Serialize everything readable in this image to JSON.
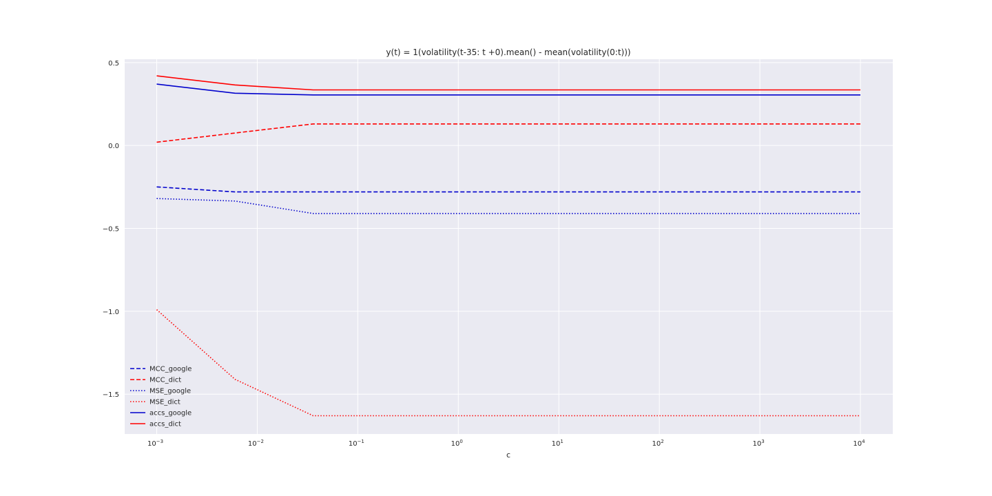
{
  "chart_data": {
    "type": "line",
    "title": "y(t) = 1(volatility(t-35: t +0).mean() -  mean(volatility(0:t)))",
    "xlabel": "c",
    "ylabel": "",
    "xscale": "log",
    "xlim": [
      0.00048,
      21000
    ],
    "ylim": [
      -1.74,
      0.52
    ],
    "grid": true,
    "legend_position": "lower-left",
    "plot_background": "#eaeaf2",
    "grid_color": "#ffffff",
    "xticks": [
      {
        "base": "10",
        "exp": "−3",
        "value": 0.001
      },
      {
        "base": "10",
        "exp": "−2",
        "value": 0.01
      },
      {
        "base": "10",
        "exp": "−1",
        "value": 0.1
      },
      {
        "base": "10",
        "exp": "0",
        "value": 1
      },
      {
        "base": "10",
        "exp": "1",
        "value": 10
      },
      {
        "base": "10",
        "exp": "2",
        "value": 100
      },
      {
        "base": "10",
        "exp": "3",
        "value": 1000
      },
      {
        "base": "10",
        "exp": "4",
        "value": 10000
      }
    ],
    "yticks": [
      {
        "label": "0.5",
        "value": 0.5
      },
      {
        "label": "0.0",
        "value": 0.0
      },
      {
        "label": "−0.5",
        "value": -0.5
      },
      {
        "label": "−1.0",
        "value": -1.0
      },
      {
        "label": "−1.5",
        "value": -1.5
      }
    ],
    "x": [
      0.001,
      0.006,
      0.036,
      0.2,
      1.3,
      7.7,
      46,
      280,
      1670,
      10000
    ],
    "series": [
      {
        "name": "MCC_google",
        "color": "#0000cc",
        "style": "dashed",
        "values": [
          -0.25,
          -0.28,
          -0.28,
          -0.28,
          -0.28,
          -0.28,
          -0.28,
          -0.28,
          -0.28,
          -0.28
        ]
      },
      {
        "name": "MCC_dict",
        "color": "#ff0000",
        "style": "dashed",
        "values": [
          0.02,
          0.075,
          0.13,
          0.13,
          0.13,
          0.13,
          0.13,
          0.13,
          0.13,
          0.13
        ]
      },
      {
        "name": "MSE_google",
        "color": "#0000cc",
        "style": "dotted",
        "values": [
          -0.32,
          -0.335,
          -0.41,
          -0.41,
          -0.41,
          -0.41,
          -0.41,
          -0.41,
          -0.41,
          -0.41
        ]
      },
      {
        "name": "MSE_dict",
        "color": "#ff0000",
        "style": "dotted",
        "values": [
          -0.99,
          -1.41,
          -1.63,
          -1.63,
          -1.63,
          -1.63,
          -1.63,
          -1.63,
          -1.63,
          -1.63
        ]
      },
      {
        "name": "accs_google",
        "color": "#0000cc",
        "style": "solid",
        "values": [
          0.37,
          0.315,
          0.305,
          0.305,
          0.305,
          0.305,
          0.305,
          0.305,
          0.305,
          0.305
        ]
      },
      {
        "name": "accs_dict",
        "color": "#ff0000",
        "style": "solid",
        "values": [
          0.42,
          0.365,
          0.335,
          0.335,
          0.335,
          0.335,
          0.335,
          0.335,
          0.335,
          0.335
        ]
      }
    ]
  }
}
